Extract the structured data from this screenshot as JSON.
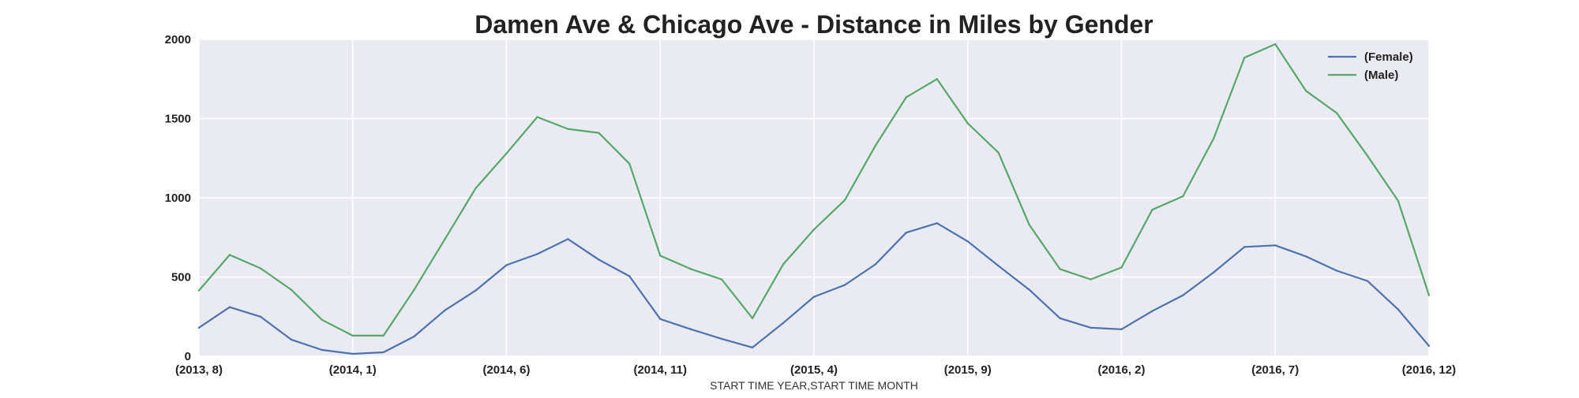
{
  "chart_data": {
    "type": "line",
    "title": "Damen Ave & Chicago Ave - Distance in Miles by Gender",
    "xlabel": "START TIME YEAR,START TIME MONTH",
    "ylabel": "",
    "ylim": [
      0,
      2000
    ],
    "y_ticks": [
      "0",
      "500",
      "1000",
      "1500",
      "2000"
    ],
    "x_tick_labels": [
      "(2013, 8)",
      "(2014, 1)",
      "(2014, 6)",
      "(2014, 11)",
      "(2015, 4)",
      "(2015, 9)",
      "(2016, 2)",
      "(2016, 7)",
      "(2016, 12)"
    ],
    "x": [
      "(2013, 8)",
      "(2013, 9)",
      "(2013, 10)",
      "(2013, 11)",
      "(2013, 12)",
      "(2014, 1)",
      "(2014, 2)",
      "(2014, 3)",
      "(2014, 4)",
      "(2014, 5)",
      "(2014, 6)",
      "(2014, 7)",
      "(2014, 8)",
      "(2014, 9)",
      "(2014, 10)",
      "(2014, 11)",
      "(2014, 12)",
      "(2015, 1)",
      "(2015, 2)",
      "(2015, 3)",
      "(2015, 4)",
      "(2015, 5)",
      "(2015, 6)",
      "(2015, 7)",
      "(2015, 8)",
      "(2015, 9)",
      "(2015, 10)",
      "(2015, 11)",
      "(2015, 12)",
      "(2016, 1)",
      "(2016, 2)",
      "(2016, 3)",
      "(2016, 4)",
      "(2016, 5)",
      "(2016, 6)",
      "(2016, 7)",
      "(2016, 8)",
      "(2016, 9)",
      "(2016, 10)",
      "(2016, 11)",
      "(2016, 12)"
    ],
    "series": [
      {
        "name": "(Female)",
        "color": "#4c72b0",
        "values": [
          180,
          310,
          250,
          105,
          40,
          15,
          25,
          125,
          290,
          415,
          575,
          645,
          740,
          610,
          505,
          235,
          170,
          110,
          55,
          210,
          375,
          450,
          580,
          780,
          840,
          725,
          570,
          420,
          240,
          180,
          170,
          285,
          385,
          530,
          690,
          700,
          630,
          540,
          475,
          295,
          65
        ]
      },
      {
        "name": "(Male)",
        "color": "#55a868",
        "values": [
          415,
          640,
          555,
          420,
          230,
          130,
          130,
          420,
          740,
          1060,
          1280,
          1510,
          1435,
          1410,
          1215,
          635,
          550,
          485,
          240,
          580,
          800,
          985,
          1330,
          1635,
          1750,
          1470,
          1285,
          830,
          550,
          485,
          560,
          925,
          1010,
          1375,
          1885,
          1970,
          1675,
          1535,
          1265,
          980,
          385
        ]
      }
    ],
    "grid": true,
    "legend_position": "top-right"
  }
}
